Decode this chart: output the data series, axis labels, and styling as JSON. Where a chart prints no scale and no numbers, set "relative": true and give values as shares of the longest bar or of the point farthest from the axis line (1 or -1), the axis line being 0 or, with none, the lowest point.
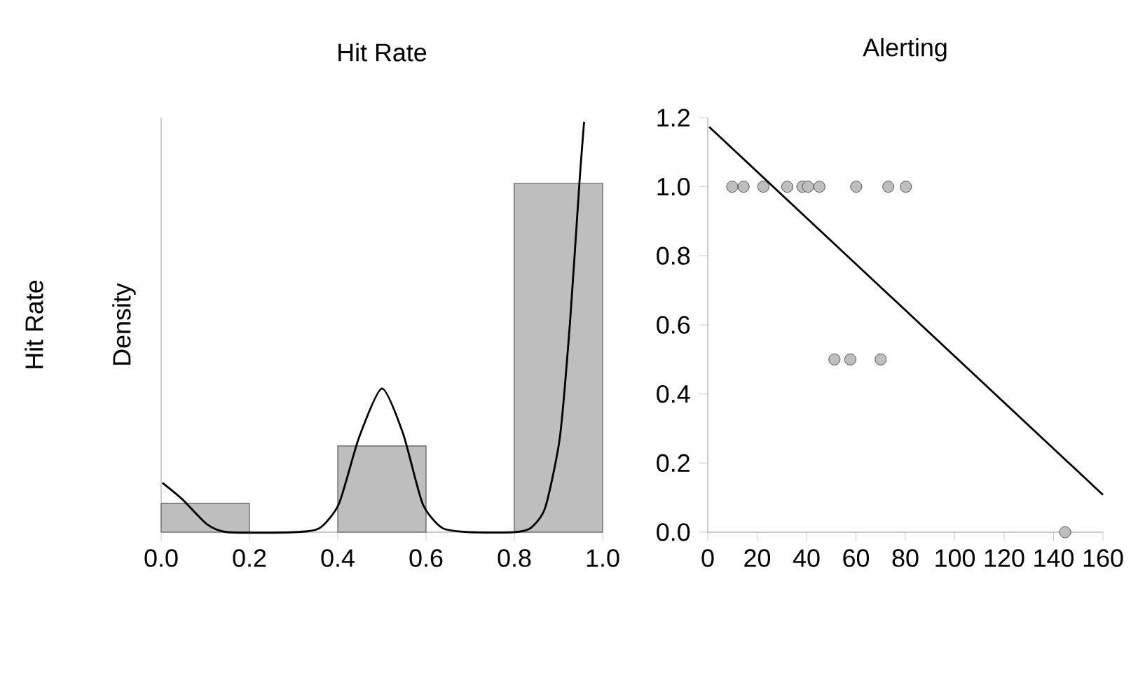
{
  "chart_data": [
    {
      "type": "histogram",
      "title": "Hit Rate",
      "ylabel": "Density",
      "annotations": [
        "Hit Rate"
      ],
      "relative": true,
      "grid": false,
      "bins": [
        0,
        0.2,
        0.4,
        0.6,
        0.8,
        1.0
      ],
      "xlim": [
        0,
        1
      ],
      "xticks": [
        {
          "value": 0,
          "label": "0.0"
        },
        0.2,
        0.4,
        0.6,
        0.8,
        {
          "value": 1,
          "label": "1.0"
        }
      ],
      "series": [
        {
          "color": "#bebebe",
          "values": [
            0.07,
            0,
            0.21,
            0,
            0.85
          ]
        },
        {
          "type": "line",
          "color": "#000000",
          "x": [
            0.003,
            0.048,
            0.103,
            0.15,
            0.3,
            0.359,
            0.403,
            0.448,
            0.5,
            0.548,
            0.592,
            0.637,
            0.7,
            0.8,
            0.837,
            0.87,
            0.903,
            0.926,
            0.948,
            0.958
          ],
          "values": [
            0.12,
            0.08,
            0.02,
            0,
            0,
            0.01,
            0.07,
            0.23,
            0.35,
            0.24,
            0.07,
            0.01,
            0,
            0,
            0.01,
            0.06,
            0.23,
            0.51,
            0.86,
            1
          ]
        }
      ]
    },
    {
      "type": "scatter",
      "title": "Alerting",
      "grid": false,
      "xlim": [
        0,
        160
      ],
      "xticks": [
        0,
        20,
        40,
        60,
        80,
        100,
        120,
        140,
        160
      ],
      "ylim": [
        0,
        1.2
      ],
      "yticks": [
        {
          "value": 0,
          "label": "0.0"
        },
        0.2,
        0.4,
        0.6,
        0.8,
        {
          "value": 1,
          "label": "1.0"
        },
        1.2
      ],
      "series": [
        {
          "color": "#bebebe",
          "marker": "circle",
          "x": [
            9.9,
            14.5,
            22.5,
            32.2,
            38.3,
            40.6,
            45.2,
            60.1,
            73.1,
            80.2,
            51.3,
            57.7,
            70.0,
            144.7
          ],
          "values": [
            1,
            1,
            1,
            1,
            1,
            1,
            1,
            1,
            1,
            1,
            0.5,
            0.5,
            0.5,
            0
          ]
        },
        {
          "type": "line",
          "marker": "none",
          "color": "#000000",
          "x": [
            0.6,
            160
          ],
          "values": [
            1.173,
            0.108
          ]
        }
      ]
    }
  ]
}
